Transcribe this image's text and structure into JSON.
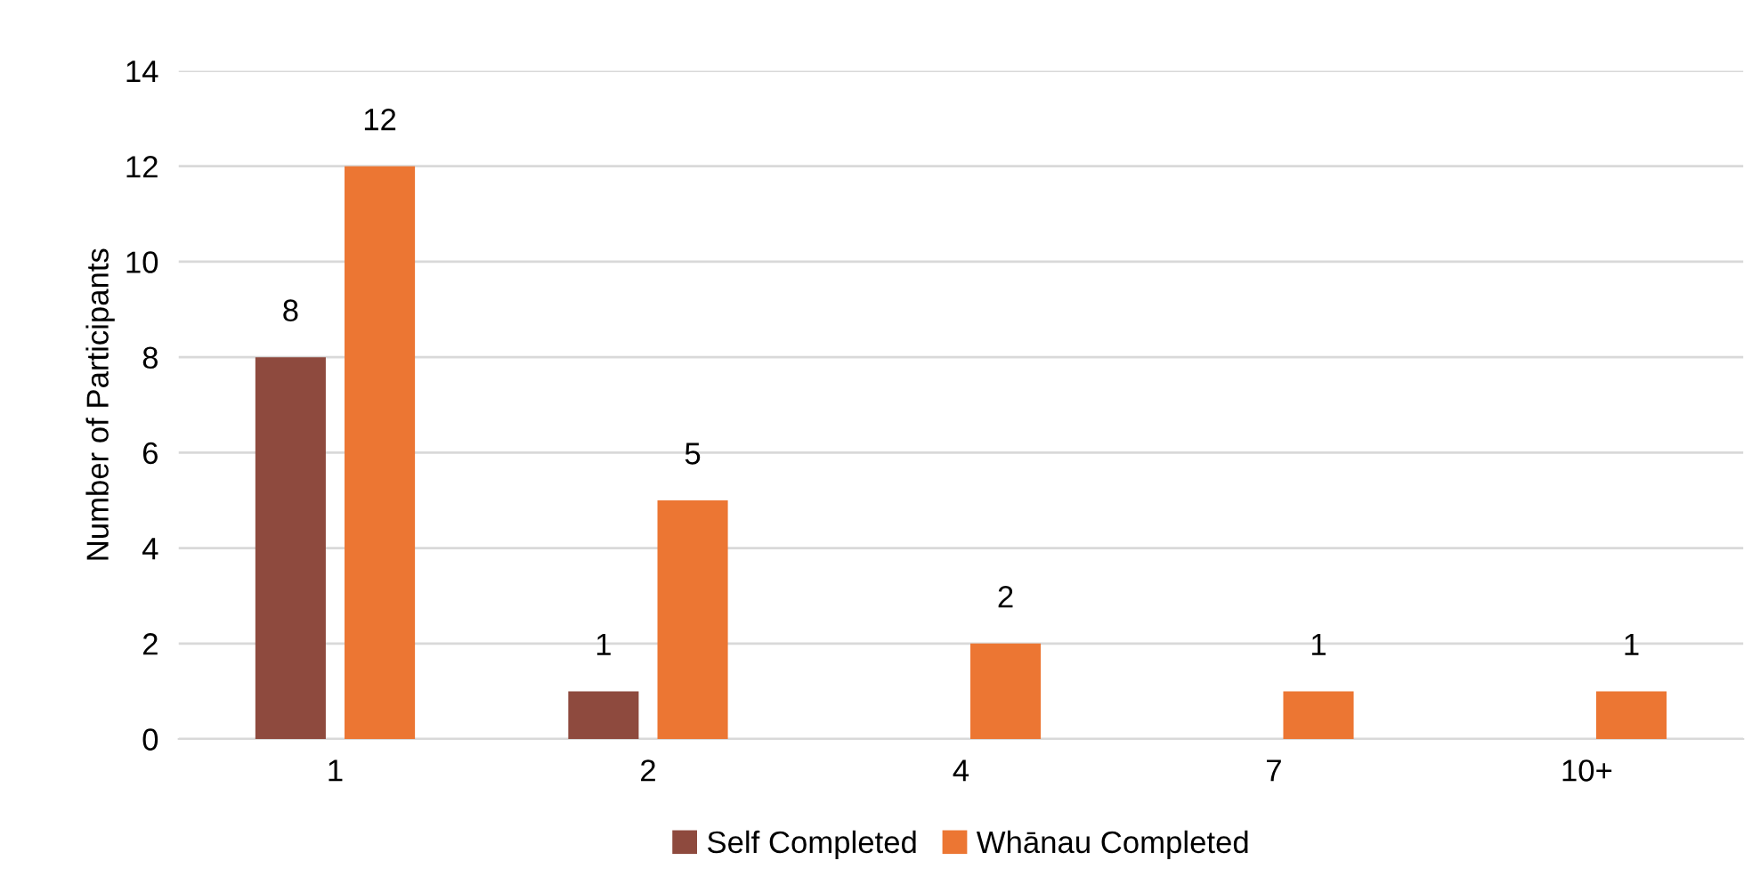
{
  "chart_data": {
    "type": "bar",
    "ylabel": "Number of Participants",
    "categories": [
      "1",
      "2",
      "4",
      "7",
      "10+"
    ],
    "series": [
      {
        "name": "Self Completed",
        "color": "#8e4a3e",
        "values": [
          8,
          1,
          null,
          null,
          null
        ]
      },
      {
        "name": "Whānau Completed",
        "color": "#ec7633",
        "values": [
          12,
          5,
          2,
          1,
          1
        ]
      }
    ],
    "ylim": [
      0,
      14
    ],
    "yticks": [
      0,
      2,
      4,
      6,
      8,
      10,
      12,
      14
    ],
    "grid": "y",
    "legend": "bottom",
    "data_labels": true
  }
}
